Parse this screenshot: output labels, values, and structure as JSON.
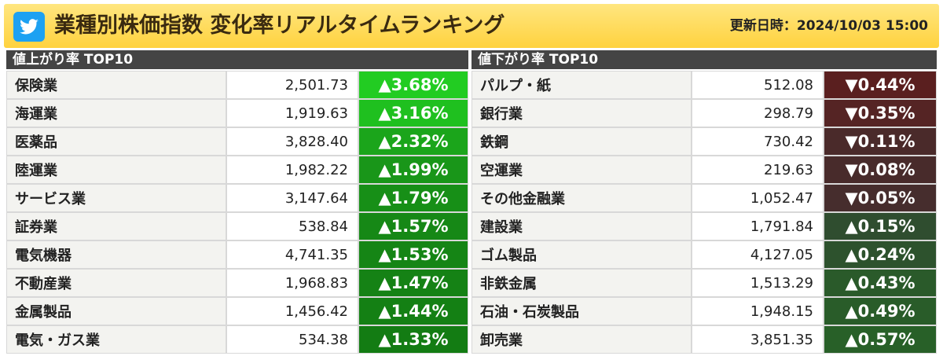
{
  "header": {
    "title": "業種別株価指数 変化率リアルタイムランキング",
    "updated": "更新日時：2024/10/03 15:00",
    "icon": "twitter-bird-icon"
  },
  "gainers": {
    "heading": "値上がり率 TOP10",
    "rows": [
      {
        "name": "保険業",
        "price": "2,501.73",
        "change": "▲3.68%",
        "color": "#22cc22"
      },
      {
        "name": "海運業",
        "price": "1,919.63",
        "change": "▲3.16%",
        "color": "#1fc01f"
      },
      {
        "name": "医薬品",
        "price": "3,828.40",
        "change": "▲2.32%",
        "color": "#1ba51b"
      },
      {
        "name": "陸運業",
        "price": "1,982.22",
        "change": "▲1.99%",
        "color": "#199619"
      },
      {
        "name": "サービス業",
        "price": "3,147.64",
        "change": "▲1.79%",
        "color": "#178f17"
      },
      {
        "name": "証券業",
        "price": "538.84",
        "change": "▲1.57%",
        "color": "#168816"
      },
      {
        "name": "電気機器",
        "price": "4,741.35",
        "change": "▲1.53%",
        "color": "#158515"
      },
      {
        "name": "不動産業",
        "price": "1,968.83",
        "change": "▲1.47%",
        "color": "#158215"
      },
      {
        "name": "金属製品",
        "price": "1,456.42",
        "change": "▲1.44%",
        "color": "#148014"
      },
      {
        "name": "電気・ガス業",
        "price": "534.38",
        "change": "▲1.33%",
        "color": "#137c13"
      }
    ]
  },
  "losers": {
    "heading": "値下がり率 TOP10",
    "rows": [
      {
        "name": "パルプ・紙",
        "price": "512.08",
        "change": "▼0.44%",
        "color": "#5a1f1f"
      },
      {
        "name": "銀行業",
        "price": "298.79",
        "change": "▼0.35%",
        "color": "#552424"
      },
      {
        "name": "鉄鋼",
        "price": "730.42",
        "change": "▼0.11%",
        "color": "#4a2a2a"
      },
      {
        "name": "空運業",
        "price": "219.63",
        "change": "▼0.08%",
        "color": "#482b2b"
      },
      {
        "name": "その他金融業",
        "price": "1,052.47",
        "change": "▼0.05%",
        "color": "#462d2d"
      },
      {
        "name": "建設業",
        "price": "1,791.84",
        "change": "▲0.15%",
        "color": "#2f4d2f"
      },
      {
        "name": "ゴム製品",
        "price": "4,127.05",
        "change": "▲0.24%",
        "color": "#2d522d"
      },
      {
        "name": "非鉄金属",
        "price": "1,513.29",
        "change": "▲0.43%",
        "color": "#2a5a2a"
      },
      {
        "name": "石油・石炭製品",
        "price": "1,948.15",
        "change": "▲0.49%",
        "color": "#295c29"
      },
      {
        "name": "卸売業",
        "price": "3,851.35",
        "change": "▲0.57%",
        "color": "#286028"
      }
    ]
  }
}
